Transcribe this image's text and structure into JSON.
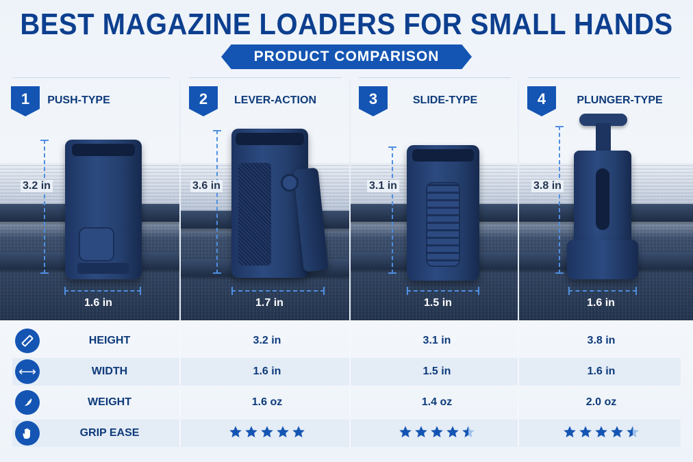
{
  "title": "BEST MAGAZINE LOADERS FOR SMALL HANDS",
  "subtitle": "PRODUCT COMPARISON",
  "colors": {
    "accent": "#1455b3",
    "text": "#0d3a7a",
    "dimension": "#4f8fe0"
  },
  "products": [
    {
      "number": "1",
      "type": "PUSH-TYPE",
      "height_label": "3.2 in",
      "width_label": "1.6 in"
    },
    {
      "number": "2",
      "type": "LEVER-ACTION",
      "height_label": "3.6 in",
      "width_label": "1.7 in"
    },
    {
      "number": "3",
      "type": "SLIDE-TYPE",
      "height_label": "3.1 in",
      "width_label": "1.5 in"
    },
    {
      "number": "4",
      "type": "PLUNGER-TYPE",
      "height_label": "3.8 in",
      "width_label": "1.6 in"
    }
  ],
  "table": {
    "rows": [
      {
        "icon": "ruler-icon",
        "label": "HEIGHT",
        "values": [
          "3.2 in",
          "3.1 in",
          "3.8 in"
        ]
      },
      {
        "icon": "arrows-horizontal-icon",
        "label": "WIDTH",
        "values": [
          "1.6 in",
          "1.5 in",
          "1.6 in"
        ]
      },
      {
        "icon": "feather-icon",
        "label": "WEIGHT",
        "values": [
          "1.6 oz",
          "1.4 oz",
          "2.0 oz"
        ]
      },
      {
        "icon": "hand-icon",
        "label": "GRIP EASE",
        "ratings": [
          5,
          4.5,
          4.5
        ]
      }
    ]
  }
}
